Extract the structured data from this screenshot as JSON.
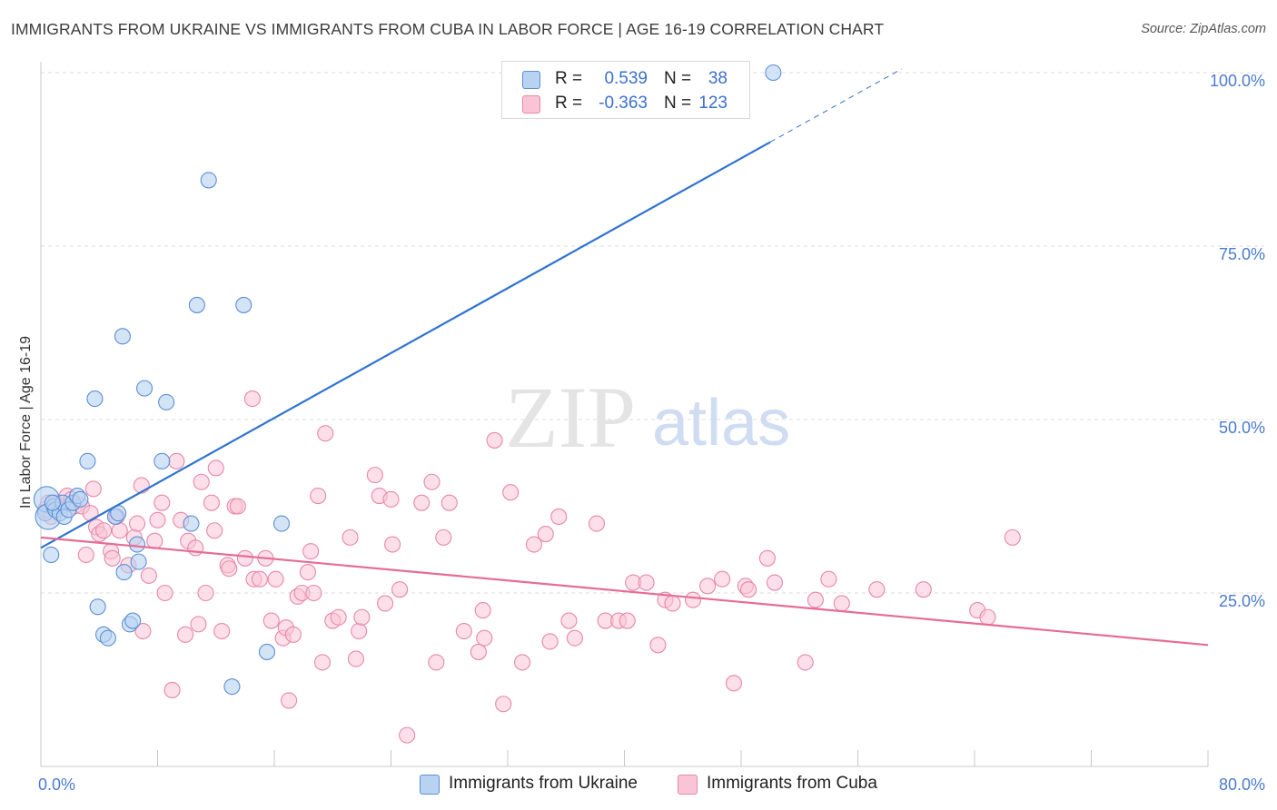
{
  "title": "IMMIGRANTS FROM UKRAINE VS IMMIGRANTS FROM CUBA IN LABOR FORCE | AGE 16-19 CORRELATION CHART",
  "source": "Source: ZipAtlas.com",
  "watermark": {
    "zip": "ZIP",
    "atlas": "atlas"
  },
  "legend": {
    "r_label": "R =",
    "n_label": "N =",
    "ukraine": {
      "r": "0.539",
      "n": "38"
    },
    "cuba": {
      "r": "-0.363",
      "n": "123"
    }
  },
  "colors": {
    "ukraine_fill": "#b8d2f2",
    "ukraine_stroke": "#5b8fd6",
    "ukraine_line": "#2f73d0",
    "cuba_fill": "#f9c4d5",
    "cuba_stroke": "#e987a8",
    "cuba_line": "#e46d97",
    "grid": "#dcdcdc",
    "axis_text": "#4a7bd0"
  },
  "chart_data": {
    "type": "scatter",
    "title": "IMMIGRANTS FROM UKRAINE VS IMMIGRANTS FROM CUBA IN LABOR FORCE | AGE 16-19 CORRELATION CHART",
    "xlabel": "",
    "ylabel": "In Labor Force | Age 16-19",
    "xlim": [
      0,
      80
    ],
    "ylim": [
      0,
      102
    ],
    "x_tick_labels": {
      "0": "0.0%",
      "80": "80.0%"
    },
    "y_ticks": [
      25,
      50,
      75,
      100
    ],
    "y_tick_labels": [
      "25.0%",
      "50.0%",
      "75.0%",
      "100.0%"
    ],
    "grid": true,
    "legend_position": "top-center",
    "series": [
      {
        "name": "Immigrants from Ukraine",
        "r": 0.539,
        "n": 38,
        "trend": {
          "x0": 0,
          "y0": 31.5,
          "x1": 50,
          "y1": 90,
          "dashed_to_x": 59
        },
        "points": [
          [
            0.3,
            36.5
          ],
          [
            0.4,
            38.5
          ],
          [
            0.5,
            36
          ],
          [
            0.7,
            30.5
          ],
          [
            0.9,
            37.5
          ],
          [
            1.0,
            37
          ],
          [
            1.3,
            36.5
          ],
          [
            1.5,
            38
          ],
          [
            1.6,
            36
          ],
          [
            1.9,
            37
          ],
          [
            2.2,
            38
          ],
          [
            2.5,
            39
          ],
          [
            2.7,
            38.5
          ],
          [
            3.2,
            44
          ],
          [
            3.7,
            53
          ],
          [
            3.9,
            23
          ],
          [
            4.3,
            19
          ],
          [
            4.6,
            18.5
          ],
          [
            5.1,
            36
          ],
          [
            5.3,
            36.5
          ],
          [
            5.6,
            62
          ],
          [
            5.7,
            28
          ],
          [
            6.1,
            20.5
          ],
          [
            6.3,
            21
          ],
          [
            6.6,
            32
          ],
          [
            6.7,
            29.5
          ],
          [
            7.1,
            54.5
          ],
          [
            8.6,
            52.5
          ],
          [
            8.3,
            44
          ],
          [
            10.3,
            35
          ],
          [
            10.7,
            66.5
          ],
          [
            11.5,
            84.5
          ],
          [
            13.1,
            11.5
          ],
          [
            13.9,
            66.5
          ],
          [
            15.5,
            16.5
          ],
          [
            16.5,
            35
          ],
          [
            50.2,
            100
          ],
          [
            0.8,
            38
          ]
        ]
      },
      {
        "name": "Immigrants from Cuba",
        "r": -0.363,
        "n": 123,
        "trend": {
          "x0": 0,
          "y0": 33,
          "x1": 80,
          "y1": 17.5
        },
        "points": [
          [
            0.3,
            37
          ],
          [
            0.5,
            38
          ],
          [
            0.7,
            36
          ],
          [
            1.0,
            38
          ],
          [
            1.4,
            37.5
          ],
          [
            1.8,
            39
          ],
          [
            2.1,
            38.5
          ],
          [
            2.3,
            37.5
          ],
          [
            2.8,
            37.5
          ],
          [
            3.1,
            30.5
          ],
          [
            3.4,
            36.5
          ],
          [
            3.6,
            40
          ],
          [
            3.8,
            34.5
          ],
          [
            4.0,
            33.5
          ],
          [
            4.3,
            34
          ],
          [
            4.8,
            31
          ],
          [
            4.9,
            30
          ],
          [
            5.2,
            36
          ],
          [
            5.4,
            34
          ],
          [
            6.0,
            29
          ],
          [
            6.4,
            33
          ],
          [
            6.6,
            35
          ],
          [
            6.9,
            40.5
          ],
          [
            7.0,
            19.5
          ],
          [
            7.4,
            27.5
          ],
          [
            7.8,
            32.5
          ],
          [
            8.0,
            35.5
          ],
          [
            8.3,
            38
          ],
          [
            8.5,
            25
          ],
          [
            9.0,
            11
          ],
          [
            9.3,
            44
          ],
          [
            9.6,
            35.5
          ],
          [
            9.9,
            19
          ],
          [
            10.1,
            32.5
          ],
          [
            10.6,
            31.5
          ],
          [
            10.8,
            20.5
          ],
          [
            11.0,
            41
          ],
          [
            11.3,
            25
          ],
          [
            11.7,
            38
          ],
          [
            11.9,
            34
          ],
          [
            12.0,
            43
          ],
          [
            12.4,
            19.5
          ],
          [
            12.8,
            29
          ],
          [
            12.9,
            28.5
          ],
          [
            13.3,
            37.5
          ],
          [
            13.5,
            37.5
          ],
          [
            14.0,
            30
          ],
          [
            14.5,
            53
          ],
          [
            14.6,
            27
          ],
          [
            15.0,
            27
          ],
          [
            15.4,
            30
          ],
          [
            15.8,
            21
          ],
          [
            16.1,
            27
          ],
          [
            16.6,
            18.5
          ],
          [
            16.8,
            20
          ],
          [
            17.0,
            9.5
          ],
          [
            17.3,
            19
          ],
          [
            17.6,
            24.5
          ],
          [
            17.9,
            25
          ],
          [
            18.3,
            28
          ],
          [
            18.5,
            31
          ],
          [
            18.7,
            25
          ],
          [
            19.0,
            39
          ],
          [
            19.3,
            15
          ],
          [
            19.5,
            48
          ],
          [
            20.0,
            21
          ],
          [
            20.4,
            21.5
          ],
          [
            21.2,
            33
          ],
          [
            21.6,
            15.5
          ],
          [
            21.8,
            19.5
          ],
          [
            22.0,
            21.5
          ],
          [
            22.9,
            42
          ],
          [
            23.2,
            39
          ],
          [
            23.6,
            23.5
          ],
          [
            24.0,
            38.5
          ],
          [
            24.1,
            32
          ],
          [
            24.6,
            25.5
          ],
          [
            25.1,
            4.5
          ],
          [
            26.1,
            38
          ],
          [
            26.8,
            41
          ],
          [
            27.1,
            15
          ],
          [
            27.6,
            33
          ],
          [
            28.0,
            38
          ],
          [
            29.0,
            19.5
          ],
          [
            30.0,
            16.5
          ],
          [
            30.3,
            22.5
          ],
          [
            30.4,
            18.5
          ],
          [
            31.1,
            47
          ],
          [
            31.7,
            9
          ],
          [
            32.2,
            39.5
          ],
          [
            33.0,
            15
          ],
          [
            33.8,
            32
          ],
          [
            34.6,
            33.5
          ],
          [
            34.9,
            18
          ],
          [
            35.5,
            36
          ],
          [
            36.2,
            21
          ],
          [
            36.6,
            18.5
          ],
          [
            38.1,
            35
          ],
          [
            38.7,
            21
          ],
          [
            39.6,
            21
          ],
          [
            40.2,
            21
          ],
          [
            40.6,
            26.5
          ],
          [
            41.5,
            26.5
          ],
          [
            42.3,
            17.5
          ],
          [
            42.8,
            24
          ],
          [
            43.3,
            23.5
          ],
          [
            44.7,
            24
          ],
          [
            45.7,
            26
          ],
          [
            46.7,
            27
          ],
          [
            47.5,
            12
          ],
          [
            48.3,
            26
          ],
          [
            48.5,
            25.5
          ],
          [
            49.8,
            30
          ],
          [
            50.3,
            26.5
          ],
          [
            52.4,
            15
          ],
          [
            53.1,
            24
          ],
          [
            54.0,
            27
          ],
          [
            54.9,
            23.5
          ],
          [
            57.3,
            25.5
          ],
          [
            60.5,
            25.5
          ],
          [
            64.2,
            22.5
          ],
          [
            64.9,
            21.5
          ],
          [
            66.6,
            33
          ]
        ]
      }
    ]
  }
}
